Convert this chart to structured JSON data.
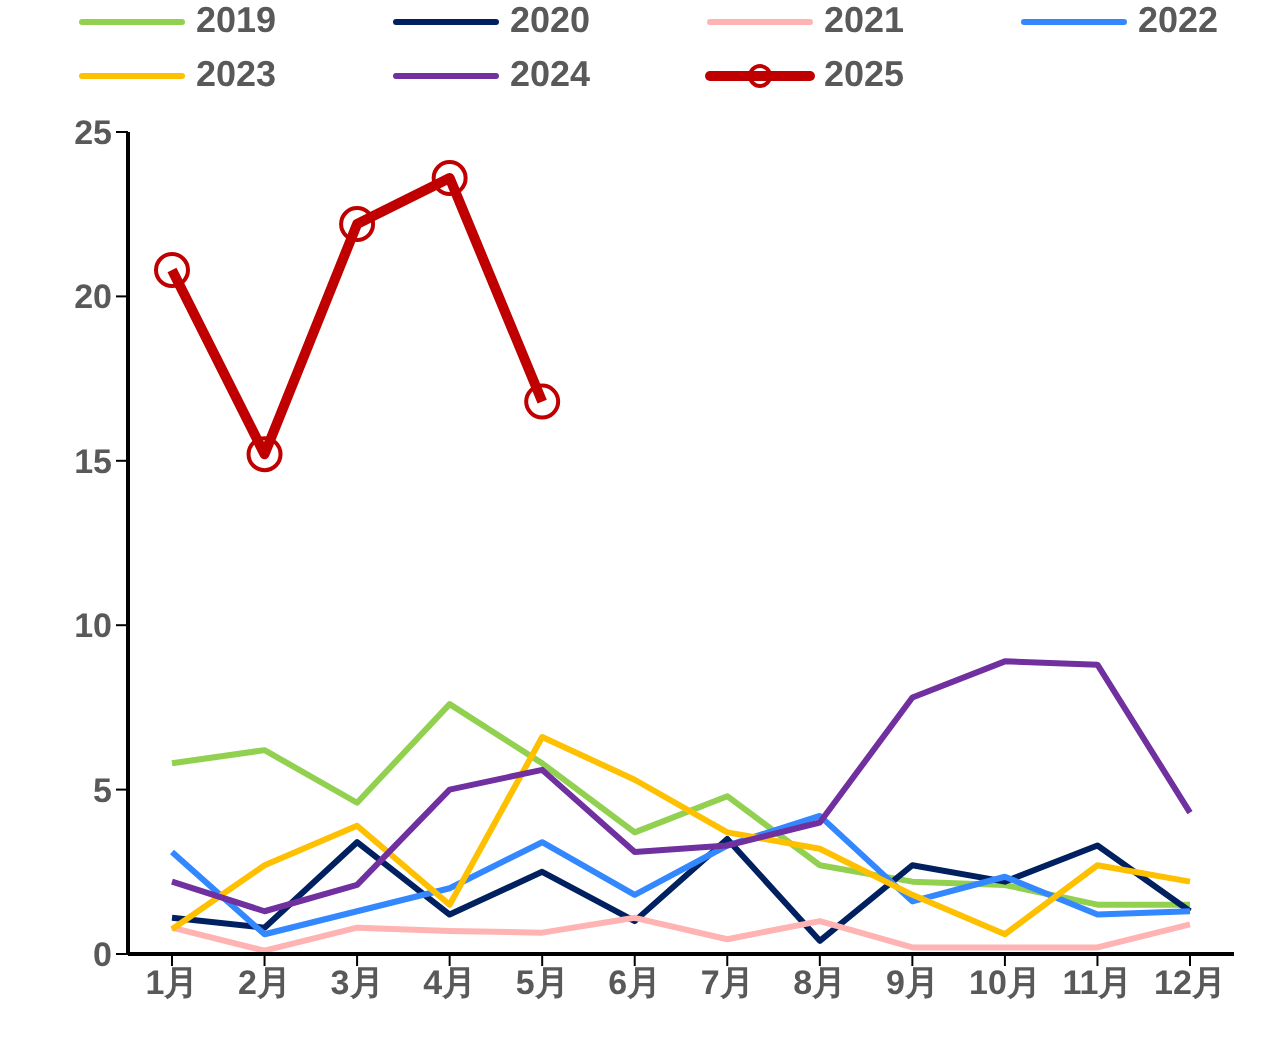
{
  "chart_data": {
    "type": "line",
    "categories": [
      "1月",
      "2月",
      "3月",
      "4月",
      "5月",
      "6月",
      "7月",
      "8月",
      "9月",
      "10月",
      "11月",
      "12月"
    ],
    "ylim": [
      0,
      25
    ],
    "yticks": [
      0,
      5,
      10,
      15,
      20,
      25
    ],
    "grid": false,
    "legend": "top",
    "marker": "none",
    "line_style": "solid",
    "series": [
      {
        "name": "2019",
        "color": "#92d050",
        "values": [
          5.8,
          6.2,
          4.6,
          7.6,
          5.8,
          3.7,
          4.8,
          2.7,
          2.2,
          2.1,
          1.5,
          1.5
        ]
      },
      {
        "name": "2020",
        "color": "#002060",
        "values": [
          1.1,
          0.8,
          3.4,
          1.2,
          2.5,
          1.0,
          3.5,
          0.4,
          2.7,
          2.2,
          3.3,
          1.3
        ]
      },
      {
        "name": "2021",
        "color": "#ffb3b3",
        "values": [
          0.8,
          0.1,
          0.8,
          0.7,
          0.65,
          1.1,
          0.45,
          1.0,
          0.2,
          0.2,
          0.2,
          0.9
        ]
      },
      {
        "name": "2022",
        "color": "#3388ff",
        "values": [
          3.1,
          0.6,
          1.3,
          2.0,
          3.4,
          1.8,
          3.3,
          4.2,
          1.6,
          2.35,
          1.2,
          1.3
        ]
      },
      {
        "name": "2023",
        "color": "#ffc000",
        "values": [
          0.75,
          2.7,
          3.9,
          1.5,
          6.6,
          5.3,
          3.7,
          3.2,
          1.8,
          0.6,
          2.7,
          2.2
        ]
      },
      {
        "name": "2024",
        "color": "#7030a0",
        "values": [
          2.2,
          1.3,
          2.1,
          5.0,
          5.6,
          3.1,
          3.3,
          4.0,
          7.8,
          8.9,
          8.8,
          4.3
        ]
      },
      {
        "name": "2025",
        "color": "#c00000",
        "marker": "circle",
        "values": [
          20.8,
          15.2,
          22.2,
          23.6,
          16.8,
          null,
          null,
          null,
          null,
          null,
          null,
          null
        ]
      }
    ]
  }
}
